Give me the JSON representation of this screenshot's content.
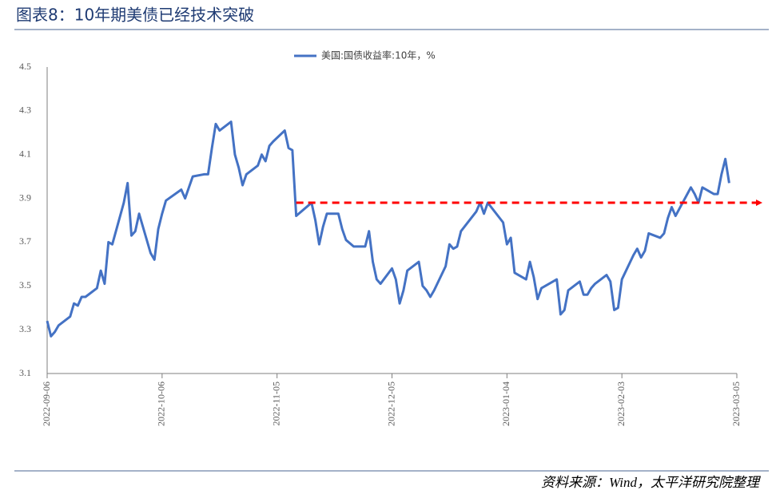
{
  "header": {
    "title": "图表8：10年期美债已经技术突破"
  },
  "footer": {
    "source": "资料来源：Wind，太平洋研究院整理"
  },
  "chart_data": {
    "type": "line",
    "x": [
      "2022-09-06",
      "2022-09-07",
      "2022-09-08",
      "2022-09-09",
      "2022-09-12",
      "2022-09-13",
      "2022-09-14",
      "2022-09-15",
      "2022-09-16",
      "2022-09-19",
      "2022-09-20",
      "2022-09-21",
      "2022-09-22",
      "2022-09-23",
      "2022-09-26",
      "2022-09-27",
      "2022-09-28",
      "2022-09-29",
      "2022-09-30",
      "2022-10-03",
      "2022-10-04",
      "2022-10-05",
      "2022-10-06",
      "2022-10-07",
      "2022-10-11",
      "2022-10-12",
      "2022-10-13",
      "2022-10-14",
      "2022-10-17",
      "2022-10-18",
      "2022-10-19",
      "2022-10-20",
      "2022-10-21",
      "2022-10-24",
      "2022-10-25",
      "2022-10-26",
      "2022-10-27",
      "2022-10-28",
      "2022-10-31",
      "2022-11-01",
      "2022-11-02",
      "2022-11-03",
      "2022-11-04",
      "2022-11-07",
      "2022-11-08",
      "2022-11-09",
      "2022-11-10",
      "2022-11-14",
      "2022-11-15",
      "2022-11-16",
      "2022-11-17",
      "2022-11-18",
      "2022-11-21",
      "2022-11-22",
      "2022-11-23",
      "2022-11-25",
      "2022-11-28",
      "2022-11-29",
      "2022-11-30",
      "2022-12-01",
      "2022-12-02",
      "2022-12-05",
      "2022-12-06",
      "2022-12-07",
      "2022-12-08",
      "2022-12-09",
      "2022-12-12",
      "2022-12-13",
      "2022-12-14",
      "2022-12-15",
      "2022-12-16",
      "2022-12-19",
      "2022-12-20",
      "2022-12-21",
      "2022-12-22",
      "2022-12-23",
      "2022-12-27",
      "2022-12-28",
      "2022-12-29",
      "2022-12-30",
      "2023-01-03",
      "2023-01-04",
      "2023-01-05",
      "2023-01-06",
      "2023-01-09",
      "2023-01-10",
      "2023-01-11",
      "2023-01-12",
      "2023-01-13",
      "2023-01-17",
      "2023-01-18",
      "2023-01-19",
      "2023-01-20",
      "2023-01-23",
      "2023-01-24",
      "2023-01-25",
      "2023-01-26",
      "2023-01-27",
      "2023-01-30",
      "2023-01-31",
      "2023-02-01",
      "2023-02-02",
      "2023-02-03",
      "2023-02-06",
      "2023-02-07",
      "2023-02-08",
      "2023-02-09",
      "2023-02-10",
      "2023-02-13",
      "2023-02-14",
      "2023-02-15",
      "2023-02-16",
      "2023-02-17",
      "2023-02-21",
      "2023-02-22",
      "2023-02-23",
      "2023-02-24",
      "2023-02-27",
      "2023-02-28",
      "2023-03-01",
      "2023-03-02",
      "2023-03-03"
    ],
    "series": [
      {
        "name": "美国:国债收益率:10年，%",
        "color": "#4472c4",
        "values": [
          3.34,
          3.27,
          3.29,
          3.32,
          3.36,
          3.42,
          3.41,
          3.45,
          3.45,
          3.49,
          3.57,
          3.51,
          3.7,
          3.69,
          3.88,
          3.97,
          3.73,
          3.75,
          3.83,
          3.65,
          3.62,
          3.76,
          3.83,
          3.89,
          3.94,
          3.9,
          3.95,
          4.0,
          4.01,
          4.01,
          4.13,
          4.24,
          4.21,
          4.25,
          4.1,
          4.04,
          3.96,
          4.01,
          4.05,
          4.1,
          4.07,
          4.14,
          4.16,
          4.21,
          4.13,
          4.12,
          3.82,
          3.88,
          3.8,
          3.69,
          3.77,
          3.83,
          3.83,
          3.76,
          3.71,
          3.68,
          3.68,
          3.75,
          3.61,
          3.53,
          3.51,
          3.58,
          3.53,
          3.42,
          3.48,
          3.57,
          3.61,
          3.5,
          3.48,
          3.45,
          3.48,
          3.59,
          3.69,
          3.67,
          3.68,
          3.75,
          3.84,
          3.88,
          3.83,
          3.88,
          3.79,
          3.69,
          3.72,
          3.56,
          3.53,
          3.61,
          3.54,
          3.44,
          3.49,
          3.53,
          3.37,
          3.39,
          3.48,
          3.52,
          3.46,
          3.46,
          3.49,
          3.51,
          3.55,
          3.52,
          3.39,
          3.4,
          3.53,
          3.64,
          3.67,
          3.63,
          3.66,
          3.74,
          3.72,
          3.74,
          3.81,
          3.86,
          3.82,
          3.95,
          3.92,
          3.88,
          3.95,
          3.92,
          3.92,
          4.01,
          4.08,
          3.97
        ]
      }
    ],
    "xlim": [
      "2022-09-06",
      "2023-03-05"
    ],
    "xticks": [
      "2022-09-06",
      "2022-10-06",
      "2022-11-05",
      "2022-12-05",
      "2023-01-04",
      "2023-02-03",
      "2023-03-05"
    ],
    "ylim": [
      3.1,
      4.5
    ],
    "yticks": [
      3.1,
      3.3,
      3.5,
      3.7,
      3.9,
      4.1,
      4.3,
      4.5
    ],
    "grid": false,
    "legend": "top",
    "reference_line": {
      "x": "2022-11-10",
      "value": 3.88,
      "color": "#ff0000"
    }
  }
}
